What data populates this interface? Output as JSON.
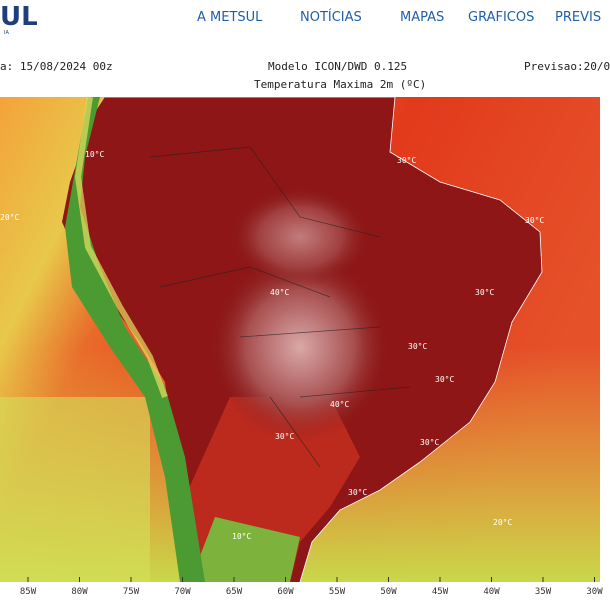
{
  "header": {
    "logo": "UL",
    "logo_sub": "IA",
    "nav": [
      "A METSUL",
      "NOTÍCIAS",
      "MAPAS",
      "GRAFICOS",
      "PREVIS"
    ]
  },
  "map": {
    "date": "a: 15/08/2024 00z",
    "model": "Modelo ICON/DWD 0.125",
    "variable": "Temperatura Maxima 2m (ºC)",
    "forecast": "Previsao:20/0",
    "longitudes": [
      "85W",
      "80W",
      "75W",
      "70W",
      "65W",
      "60W",
      "55W",
      "50W",
      "45W",
      "40W",
      "35W",
      "30W"
    ],
    "contour_labels": [
      "30°C",
      "30°C",
      "40°C",
      "30°C",
      "30°C",
      "30°C",
      "40°C",
      "30°C",
      "30°C",
      "30°C",
      "20°C",
      "10°C",
      "10°C",
      "20°C"
    ]
  }
}
